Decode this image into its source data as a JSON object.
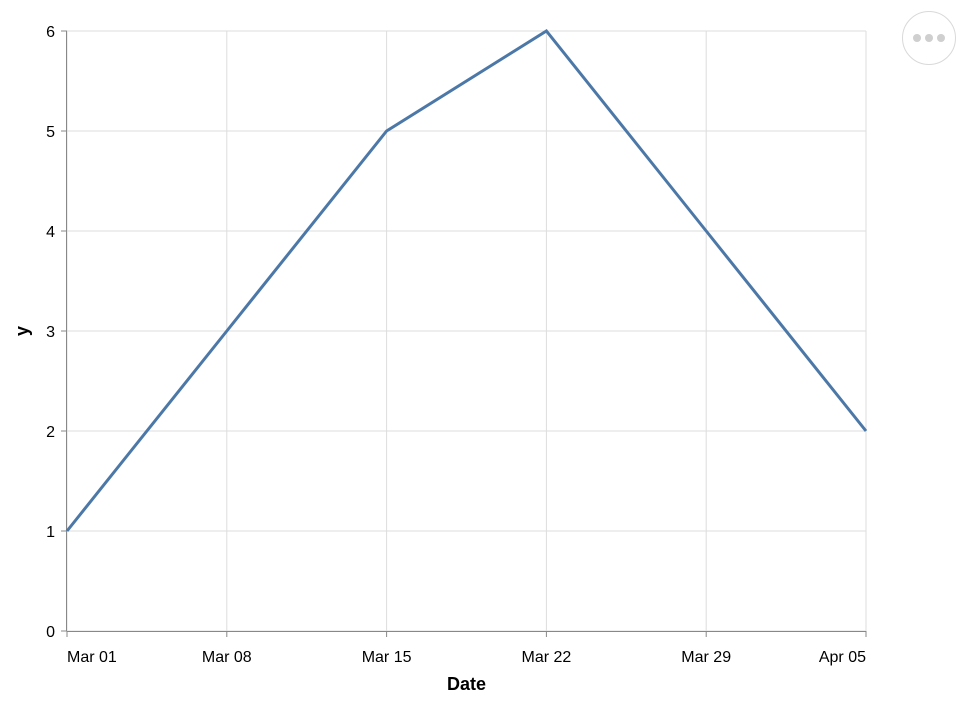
{
  "chart_data": {
    "type": "line",
    "title": "",
    "xlabel": "Date",
    "ylabel": "y",
    "x_tick_labels": [
      "Mar 01",
      "Mar 08",
      "Mar 15",
      "Mar 22",
      "Mar 29",
      "Apr 05"
    ],
    "y_tick_labels": [
      "0",
      "1",
      "2",
      "3",
      "4",
      "5",
      "6"
    ],
    "x": [
      "2024-03-01",
      "2024-03-08",
      "2024-03-15",
      "2024-03-22",
      "2024-03-29",
      "2024-04-05"
    ],
    "ylim": [
      0,
      6
    ],
    "xlim": [
      "2024-03-01",
      "2024-04-05"
    ],
    "grid": true,
    "series": [
      {
        "values": [
          1,
          3,
          5,
          6,
          4,
          2
        ],
        "color": "#4c78a8"
      }
    ]
  },
  "actions_menu": {
    "icon": "more-horizontal-icon"
  }
}
